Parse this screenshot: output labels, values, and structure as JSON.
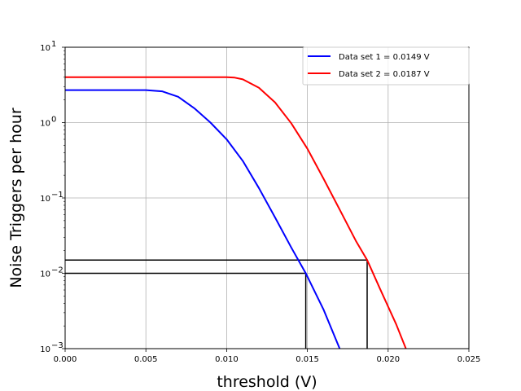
{
  "chart_data": {
    "type": "line",
    "xlabel": "threshold (V)",
    "ylabel": "Noise Triggers per hour",
    "xlim": [
      0.0,
      0.025
    ],
    "ylim": [
      0.001,
      10
    ],
    "yscale": "log",
    "grid": true,
    "legend_position": "top-right",
    "x_ticks": [
      {
        "value": 0.0,
        "label": "0.000"
      },
      {
        "value": 0.005,
        "label": "0.005"
      },
      {
        "value": 0.01,
        "label": "0.010"
      },
      {
        "value": 0.015,
        "label": "0.015"
      },
      {
        "value": 0.02,
        "label": "0.020"
      },
      {
        "value": 0.025,
        "label": "0.025"
      }
    ],
    "y_ticks": [
      {
        "value": 0.001,
        "label": "10",
        "exp": "−3"
      },
      {
        "value": 0.01,
        "label": "10",
        "exp": "−2"
      },
      {
        "value": 0.1,
        "label": "10",
        "exp": "−1"
      },
      {
        "value": 1,
        "label": "10",
        "exp": "0"
      },
      {
        "value": 10,
        "label": "10",
        "exp": "1"
      }
    ],
    "series": [
      {
        "name": "Data set 1 = 0.0149 V",
        "color": "#0000ff",
        "x": [
          0.0,
          0.005,
          0.006,
          0.007,
          0.008,
          0.009,
          0.01,
          0.011,
          0.012,
          0.013,
          0.014,
          0.0149,
          0.016,
          0.017
        ],
        "y": [
          2.7,
          2.7,
          2.6,
          2.2,
          1.55,
          1.0,
          0.6,
          0.31,
          0.135,
          0.055,
          0.022,
          0.01,
          0.0033,
          0.001
        ]
      },
      {
        "name": "Data set 2 = 0.0187 V",
        "color": "#ff0000",
        "x": [
          0.0,
          0.01,
          0.0105,
          0.011,
          0.012,
          0.013,
          0.014,
          0.015,
          0.016,
          0.017,
          0.018,
          0.0187,
          0.0195,
          0.0205,
          0.0211
        ],
        "y": [
          4.0,
          4.0,
          3.95,
          3.75,
          2.9,
          1.85,
          0.98,
          0.45,
          0.18,
          0.07,
          0.027,
          0.015,
          0.0062,
          0.0021,
          0.001
        ]
      }
    ],
    "reference_lines": [
      {
        "x": 0.0149,
        "y": 0.01,
        "color": "#000000"
      },
      {
        "x": 0.0187,
        "y": 0.015,
        "color": "#000000"
      }
    ]
  }
}
